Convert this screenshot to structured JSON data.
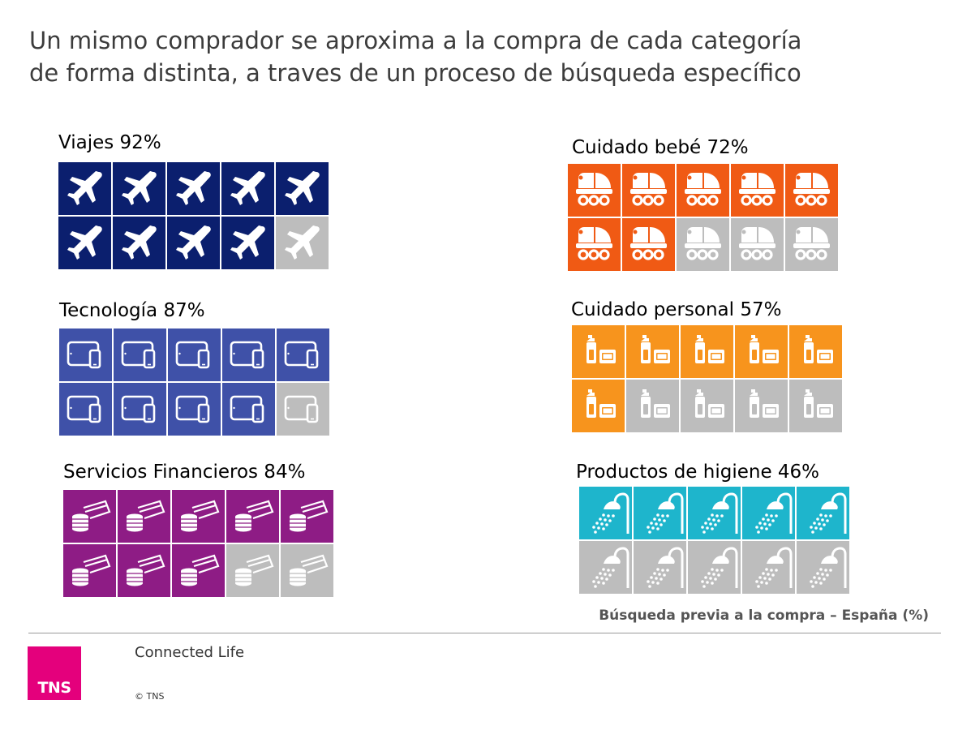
{
  "title": {
    "line1": "Un mismo comprador se aproxima a la compra de cada categoría",
    "line2": "de forma distinta, a traves de un proceso de búsqueda específico"
  },
  "chart_data": {
    "type": "pictogram",
    "title": "Un mismo comprador se aproxima a la compra de cada categoría de forma distinta, a traves de un proceso de búsqueda específico",
    "subtitle": "Búsqueda previa a la compra – España (%)",
    "units_per_category": 10,
    "empty_color": "#bdbdbd",
    "categories": [
      {
        "label": "Viajes 92%",
        "value": 92,
        "filled": 9,
        "icon": "airplane-icon",
        "color": "#0b1f6e"
      },
      {
        "label": "Tecnología 87%",
        "value": 87,
        "filled": 9,
        "icon": "tablet-phone-icon",
        "color": "#3f51a8"
      },
      {
        "label": "Servicios Financieros 84%",
        "value": 84,
        "filled": 8,
        "icon": "coins-cards-icon",
        "color": "#8e1c85"
      },
      {
        "label": "Cuidado bebé 72%",
        "value": 72,
        "filled": 7,
        "icon": "baby-stroller-icon",
        "color": "#f05a14"
      },
      {
        "label": "Cuidado personal 57%",
        "value": 57,
        "filled": 6,
        "icon": "toiletries-icon",
        "color": "#f7941d"
      },
      {
        "label": "Productos de higiene 46%",
        "value": 46,
        "filled": 5,
        "icon": "shower-icon",
        "color": "#1eb5cc"
      }
    ]
  },
  "footer": {
    "logo": "TNS",
    "brand": "Connected Life",
    "copyright": "© TNS"
  }
}
